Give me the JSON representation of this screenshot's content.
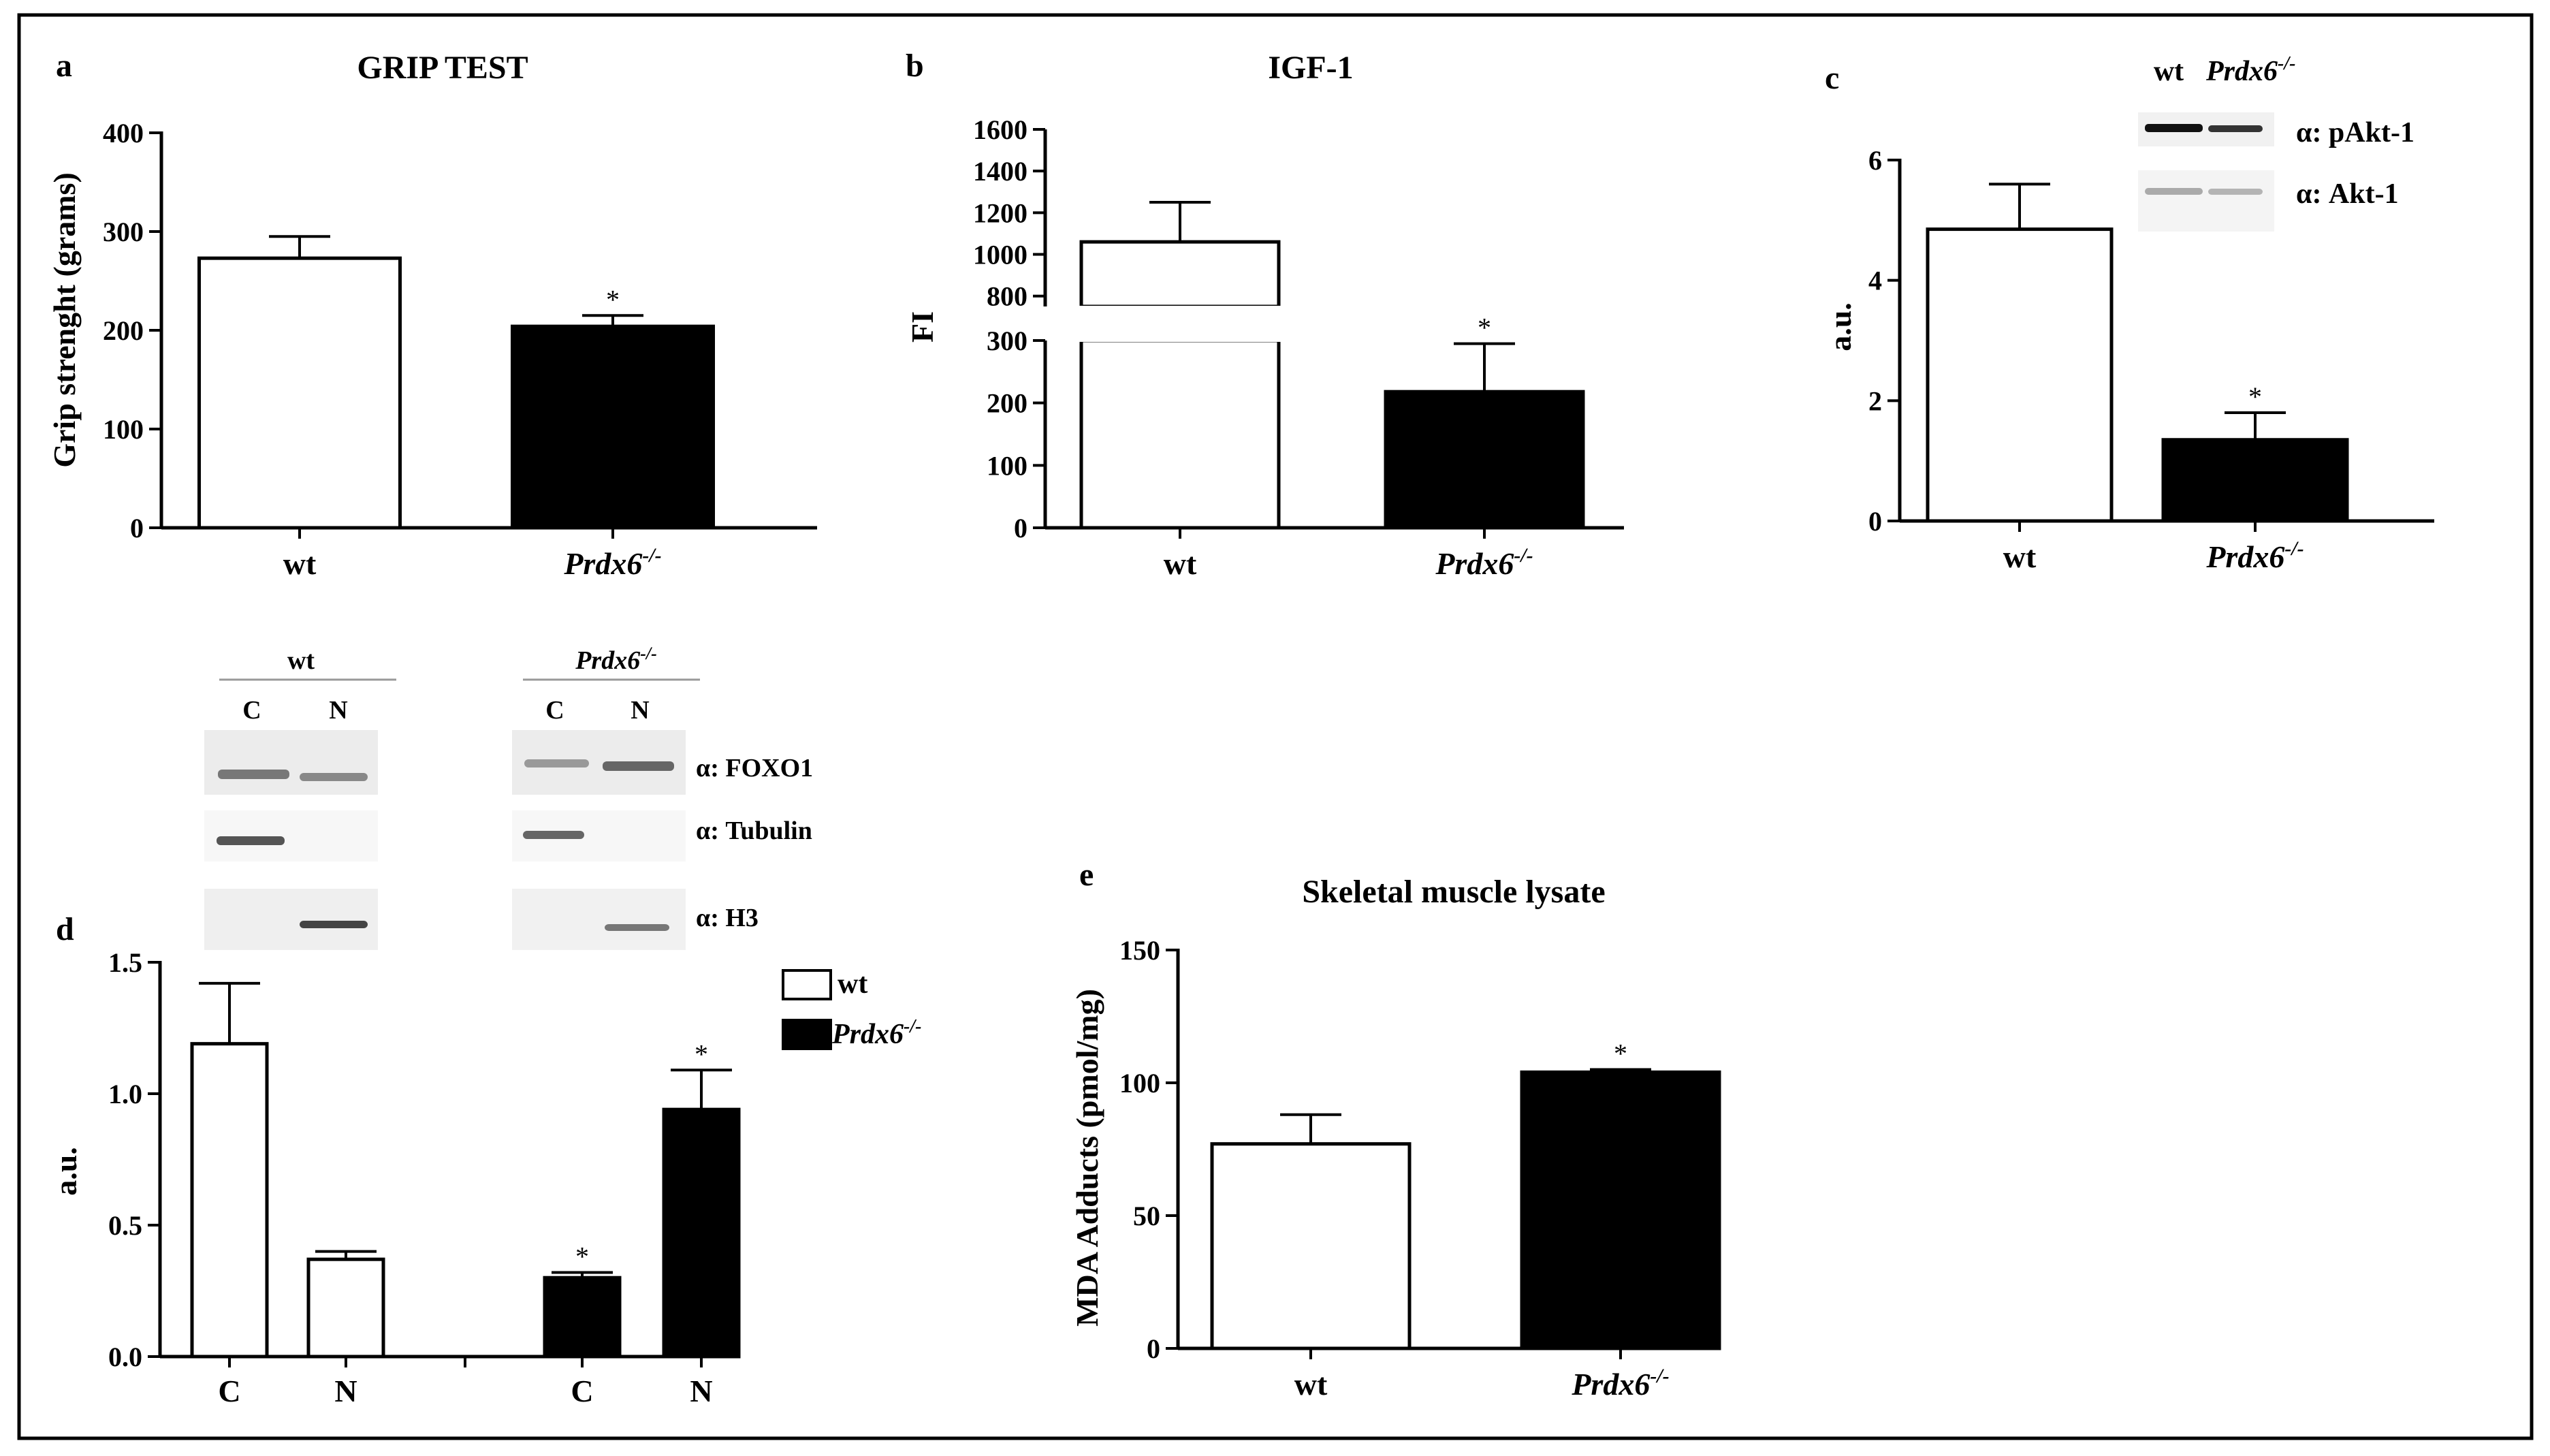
{
  "colors": {
    "ink": "#000000",
    "background": "#ffffff",
    "wt_fill": "#ffffff",
    "ko_fill": "#000000"
  },
  "chart_data": [
    {
      "panel": "a",
      "type": "bar",
      "title": "GRIP TEST",
      "ylabel": "Grip strenght (grams)",
      "xlabel": "",
      "categories": [
        "wt",
        "Prdx6-/-"
      ],
      "values": [
        273,
        204
      ],
      "errors": [
        22,
        11
      ],
      "significance": [
        "",
        "*"
      ],
      "yticks": [
        "0",
        "100",
        "200",
        "300",
        "400"
      ],
      "ylim": [
        0,
        400
      ]
    },
    {
      "panel": "b",
      "type": "bar",
      "title": "IGF-1",
      "ylabel": "FI",
      "xlabel": "",
      "categories": [
        "wt",
        "Prdx6-/-"
      ],
      "values": [
        1060,
        218
      ],
      "errors": [
        190,
        77
      ],
      "significance": [
        "",
        "*"
      ],
      "yticks_upper": [
        "800",
        "1000",
        "1200",
        "1400",
        "1600"
      ],
      "yticks_lower": [
        "0",
        "100",
        "200",
        "300"
      ],
      "axis_break": [
        300,
        750
      ],
      "ylim": [
        0,
        1600
      ]
    },
    {
      "panel": "c",
      "type": "bar",
      "title": "",
      "ylabel": "a.u.",
      "xlabel": "",
      "categories": [
        "wt",
        "Prdx6-/-"
      ],
      "values": [
        4.85,
        1.35
      ],
      "errors": [
        0.75,
        0.45
      ],
      "significance": [
        "",
        "*"
      ],
      "yticks": [
        "0",
        "2",
        "4",
        "6"
      ],
      "ylim": [
        0,
        6
      ]
    },
    {
      "panel": "d",
      "type": "bar",
      "title": "",
      "ylabel": "a.u.",
      "xlabel": "",
      "categories": [
        "C",
        "N",
        "C",
        "N"
      ],
      "groups": [
        "wt",
        "wt",
        "Prdx6-/-",
        "Prdx6-/-"
      ],
      "values": [
        1.19,
        0.37,
        0.3,
        0.94
      ],
      "errors": [
        0.23,
        0.03,
        0.02,
        0.15
      ],
      "significance": [
        "",
        "",
        "*",
        "*"
      ],
      "yticks": [
        "0.0",
        "0.5",
        "1.0",
        "1.5"
      ],
      "ylim": [
        0,
        1.5
      ],
      "legend": [
        "wt",
        "Prdx6-/-"
      ]
    },
    {
      "panel": "e",
      "type": "bar",
      "title": "Skeletal muscle lysate",
      "ylabel": "MDA Adducts (pmol/mg)",
      "xlabel": "",
      "categories": [
        "wt",
        "Prdx6-/-"
      ],
      "values": [
        77,
        104
      ],
      "errors": [
        11,
        1
      ],
      "significance": [
        "",
        "*"
      ],
      "yticks": [
        "0",
        "50",
        "100",
        "150"
      ],
      "ylim": [
        0,
        150
      ]
    }
  ],
  "panels": {
    "a_letter": "a",
    "b_letter": "b",
    "c_letter": "c",
    "d_letter": "d",
    "e_letter": "e"
  },
  "genotype": {
    "wt": "wt",
    "ko_name": "Prdx6",
    "ko_sup": "-/-"
  },
  "blots": {
    "c_header_wt": "wt",
    "c_labels": [
      "α: pAkt-1",
      "α: Akt-1"
    ],
    "d_group_wt": "wt",
    "d_lanes": [
      "C",
      "N",
      "C",
      "N"
    ],
    "d_labels": [
      "α: FOXO1",
      "α: Tubulin",
      "α: H3"
    ]
  },
  "legend_d": {
    "wt": "wt",
    "ko_name": "Prdx6",
    "ko_sup": "-/-"
  }
}
